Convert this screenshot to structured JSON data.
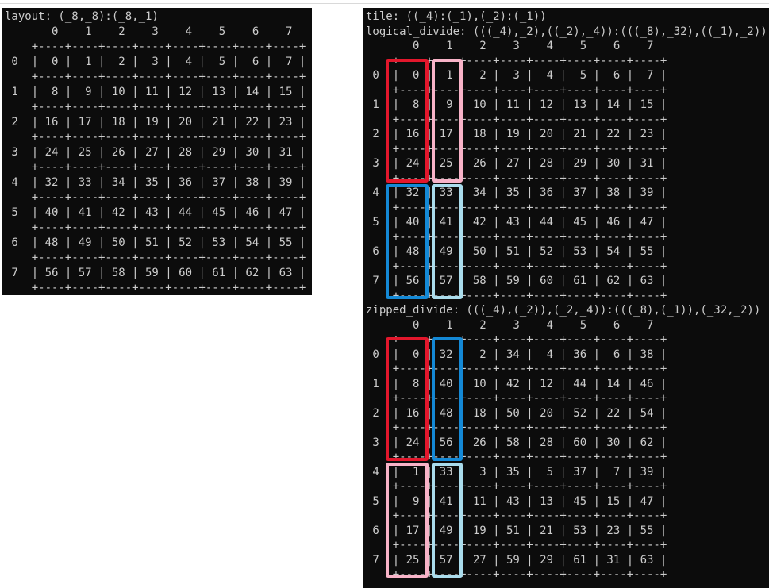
{
  "page": {
    "background": "#ffffff",
    "top_divider_color": "#d9d9d9"
  },
  "terminal": {
    "background": "#0c0c0c",
    "text_color": "#cccccc"
  },
  "left_panel": {
    "title": "layout: (_8,_8):(_8,_1)",
    "grid": {
      "col_headers": [
        "0",
        "1",
        "2",
        "3",
        "4",
        "5",
        "6",
        "7"
      ],
      "row_labels": [
        "0",
        "1",
        "2",
        "3",
        "4",
        "5",
        "6",
        "7"
      ],
      "rows": [
        [
          0,
          1,
          2,
          3,
          4,
          5,
          6,
          7
        ],
        [
          8,
          9,
          10,
          11,
          12,
          13,
          14,
          15
        ],
        [
          16,
          17,
          18,
          19,
          20,
          21,
          22,
          23
        ],
        [
          24,
          25,
          26,
          27,
          28,
          29,
          30,
          31
        ],
        [
          32,
          33,
          34,
          35,
          36,
          37,
          38,
          39
        ],
        [
          40,
          41,
          42,
          43,
          44,
          45,
          46,
          47
        ],
        [
          48,
          49,
          50,
          51,
          52,
          53,
          54,
          55
        ],
        [
          56,
          57,
          58,
          59,
          60,
          61,
          62,
          63
        ]
      ]
    }
  },
  "right_panel": {
    "tile_line": "tile: ((_4):(_1),(_2):(_1))",
    "logical_divide": {
      "title": "logical_divide: (((_4),_2),((_2),_4)):(((_8),_32),((_1),_2))",
      "grid": {
        "col_headers": [
          "0",
          "1",
          "2",
          "3",
          "4",
          "5",
          "6",
          "7"
        ],
        "row_labels": [
          "0",
          "1",
          "2",
          "3",
          "4",
          "5",
          "6",
          "7"
        ],
        "rows": [
          [
            0,
            1,
            2,
            3,
            4,
            5,
            6,
            7
          ],
          [
            8,
            9,
            10,
            11,
            12,
            13,
            14,
            15
          ],
          [
            16,
            17,
            18,
            19,
            20,
            21,
            22,
            23
          ],
          [
            24,
            25,
            26,
            27,
            28,
            29,
            30,
            31
          ],
          [
            32,
            33,
            34,
            35,
            36,
            37,
            38,
            39
          ],
          [
            40,
            41,
            42,
            43,
            44,
            45,
            46,
            47
          ],
          [
            48,
            49,
            50,
            51,
            52,
            53,
            54,
            55
          ],
          [
            56,
            57,
            58,
            59,
            60,
            61,
            62,
            63
          ]
        ]
      }
    },
    "zipped_divide": {
      "title": "zipped_divide: (((_4),(_2)),(_2,_4)):(((_8),(_1)),(_32,_2))",
      "grid": {
        "col_headers": [
          "0",
          "1",
          "2",
          "3",
          "4",
          "5",
          "6",
          "7"
        ],
        "row_labels": [
          "0",
          "1",
          "2",
          "3",
          "4",
          "5",
          "6",
          "7"
        ],
        "rows": [
          [
            0,
            32,
            2,
            34,
            4,
            36,
            6,
            38
          ],
          [
            8,
            40,
            10,
            42,
            12,
            44,
            14,
            46
          ],
          [
            16,
            48,
            18,
            50,
            20,
            52,
            22,
            54
          ],
          [
            24,
            56,
            26,
            58,
            28,
            60,
            30,
            62
          ],
          [
            1,
            33,
            3,
            35,
            5,
            37,
            7,
            39
          ],
          [
            9,
            41,
            11,
            43,
            13,
            45,
            15,
            47
          ],
          [
            17,
            49,
            19,
            51,
            21,
            53,
            23,
            55
          ],
          [
            25,
            57,
            27,
            59,
            29,
            61,
            31,
            63
          ]
        ]
      }
    },
    "highlights": [
      {
        "grid": "logical_divide",
        "color_name": "red",
        "color": "#e3172c",
        "column": 0,
        "rows": "0-3"
      },
      {
        "grid": "logical_divide",
        "color_name": "pink",
        "color": "#f8b3c8",
        "column": 1,
        "rows": "0-3"
      },
      {
        "grid": "logical_divide",
        "color_name": "blue",
        "color": "#1489d6",
        "column": 0,
        "rows": "4-7"
      },
      {
        "grid": "logical_divide",
        "color_name": "light-blue",
        "color": "#aadcec",
        "column": 1,
        "rows": "4-7"
      },
      {
        "grid": "zipped_divide",
        "color_name": "red",
        "color": "#e3172c",
        "column": 0,
        "rows": "0-3"
      },
      {
        "grid": "zipped_divide",
        "color_name": "blue",
        "color": "#1489d6",
        "column": 1,
        "rows": "0-3"
      },
      {
        "grid": "zipped_divide",
        "color_name": "pink",
        "color": "#f8b3c8",
        "column": 0,
        "rows": "4-7"
      },
      {
        "grid": "zipped_divide",
        "color_name": "light-blue",
        "color": "#aadcec",
        "column": 1,
        "rows": "4-7"
      }
    ]
  }
}
